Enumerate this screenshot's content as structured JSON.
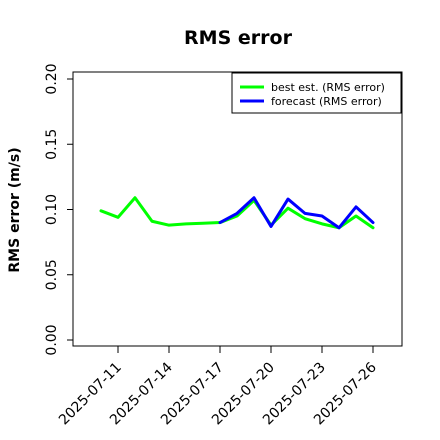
{
  "chart_data": {
    "type": "line",
    "title": "RMS error",
    "xlabel": "",
    "ylabel": "RMS error (m/s)",
    "ylim": [
      0.0,
      0.21
    ],
    "y_ticks": [
      "0.00",
      "0.05",
      "0.10",
      "0.15",
      "0.20"
    ],
    "x_tick_labels": [
      "2025-07-11",
      "2025-07-14",
      "2025-07-17",
      "2025-07-20",
      "2025-07-23",
      "2025-07-26"
    ],
    "highlighted_tick": "2025-07-17",
    "highlight_color": "#228b22",
    "grid": false,
    "legend_position": "top-right",
    "series": [
      {
        "name": "best est. (RMS error)",
        "color": "#00ff00",
        "x": [
          "2025-07-10",
          "2025-07-11",
          "2025-07-12",
          "2025-07-13",
          "2025-07-14",
          "2025-07-15",
          "2025-07-16",
          "2025-07-17",
          "2025-07-18",
          "2025-07-19",
          "2025-07-20",
          "2025-07-21",
          "2025-07-22",
          "2025-07-23",
          "2025-07-24",
          "2025-07-25",
          "2025-07-26"
        ],
        "values": [
          0.099,
          0.094,
          0.109,
          0.091,
          0.088,
          0.089,
          0.0895,
          0.09,
          0.095,
          0.107,
          0.088,
          0.101,
          0.093,
          0.089,
          0.086,
          0.095,
          0.086
        ]
      },
      {
        "name": "forecast (RMS error)",
        "color": "#0000ff",
        "x": [
          "2025-07-17",
          "2025-07-18",
          "2025-07-19",
          "2025-07-20",
          "2025-07-21",
          "2025-07-22",
          "2025-07-23",
          "2025-07-24",
          "2025-07-25",
          "2025-07-26"
        ],
        "values": [
          0.09,
          0.097,
          0.109,
          0.087,
          0.108,
          0.097,
          0.095,
          0.086,
          0.102,
          0.09
        ]
      }
    ]
  }
}
